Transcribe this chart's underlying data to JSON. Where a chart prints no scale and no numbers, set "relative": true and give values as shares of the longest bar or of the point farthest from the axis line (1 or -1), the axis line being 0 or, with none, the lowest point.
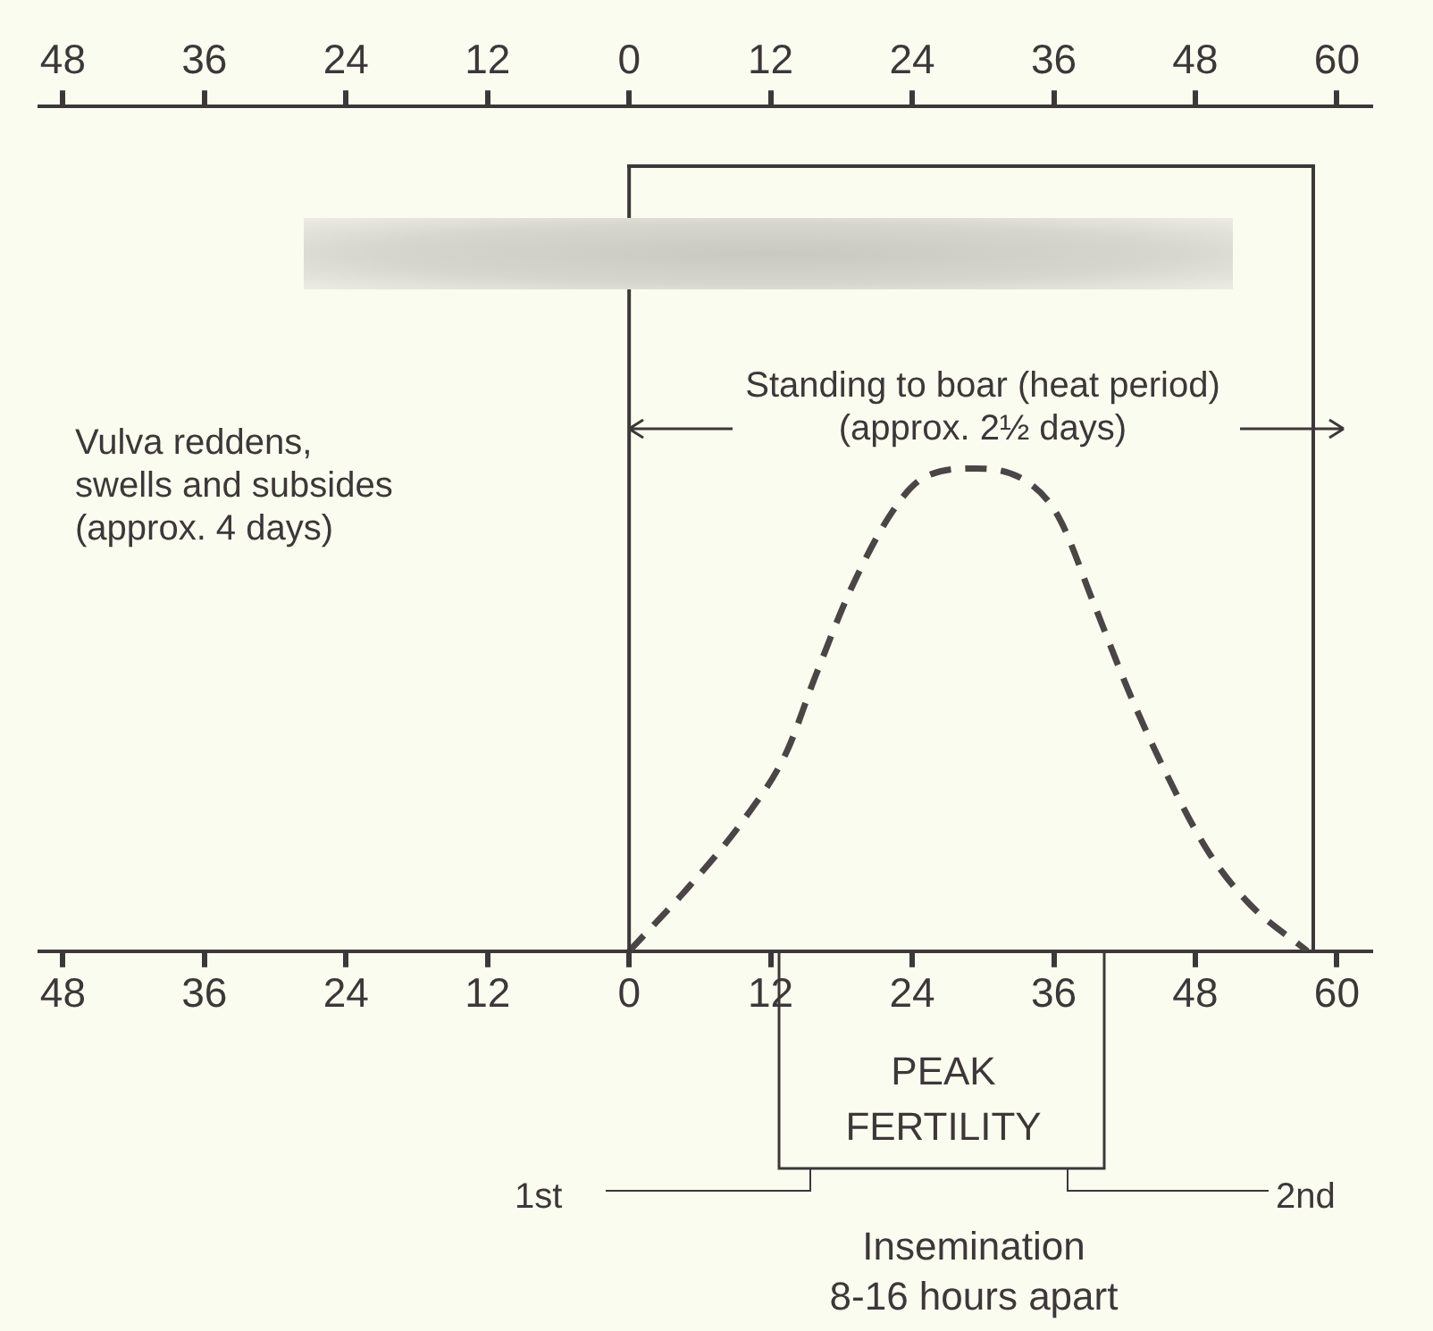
{
  "chart_data": {
    "type": "line",
    "relative": true,
    "grid": false,
    "legend": false,
    "tick_labels": "x",
    "marker": "none",
    "line_style": "dashed",
    "x": [
      0,
      5.3,
      9.8,
      13.3,
      15.8,
      18.8,
      22.3,
      24.9,
      29.4,
      33.9,
      36.4,
      39.4,
      42.5,
      45.5,
      49,
      52.5,
      57.5
    ],
    "series": [
      {
        "color": "#4a4646",
        "values": [
          0,
          0.14,
          0.275,
          0.41,
          0.57,
          0.75,
          0.91,
          0.98,
          1,
          0.97,
          0.9,
          0.72,
          0.53,
          0.37,
          0.21,
          0.1,
          0
        ]
      }
    ],
    "xlim": [
      -50,
      63
    ],
    "xticks": [
      {
        "value": -48,
        "label": "48"
      },
      {
        "value": -36,
        "label": "36"
      },
      {
        "value": -24,
        "label": "24"
      },
      {
        "value": -12,
        "label": "12"
      },
      0,
      12,
      24,
      36,
      48,
      60
    ],
    "x2lim": [
      -50,
      63
    ],
    "x2ticks": [
      {
        "value": -48,
        "label": "48"
      },
      {
        "value": -36,
        "label": "36"
      },
      {
        "value": -24,
        "label": "24"
      },
      {
        "value": -12,
        "label": "12"
      },
      0,
      12,
      24,
      36,
      48,
      60
    ],
    "ref_lines": [
      {
        "axis": "x",
        "value": 0
      },
      {
        "axis": "x",
        "value": 58
      }
    ],
    "annotations": [
      "Vulva reddens,\nswells and subsides\n(approx. 4 days)",
      "Standing to boar (heat period)\n(approx. 2½ days)",
      "1st",
      "2nd",
      "Insemination\n8-16 hours apart",
      "PEAK\nFERTILITY"
    ]
  }
}
